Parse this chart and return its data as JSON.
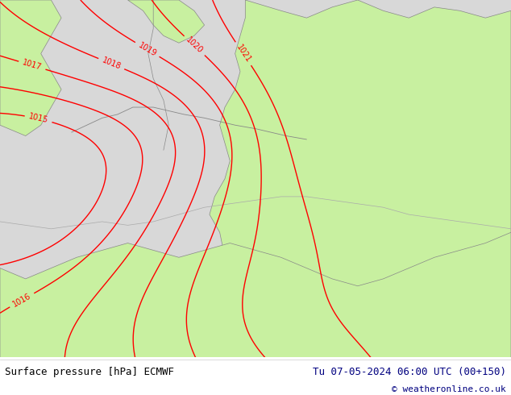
{
  "title_left": "Surface pressure [hPa] ECMWF",
  "title_right": "Tu 07-05-2024 06:00 UTC (00+150)",
  "copyright": "© weatheronline.co.uk",
  "land_color": "#c8f0a0",
  "sea_color": "#d8d8d8",
  "isobar_color": "#ff0000",
  "coast_color": "#888888",
  "border_color": "#aaaaaa",
  "footer_text_color": "#000080",
  "footer_bg_color": "#ffffff",
  "fig_width": 6.34,
  "fig_height": 4.9,
  "dpi": 100,
  "label_fontsize": 7,
  "footer_fontsize": 9
}
